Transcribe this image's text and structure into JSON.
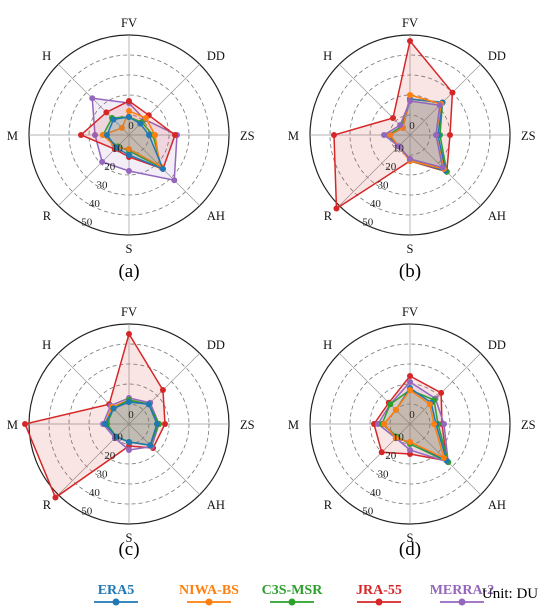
{
  "chart_data": [
    {
      "type": "radar",
      "panel_label": "(a)",
      "categories": [
        "FV",
        "DD",
        "ZS",
        "AH",
        "S",
        "R",
        "M",
        "H"
      ],
      "radial_ticks": [
        "0",
        "10",
        "20",
        "30",
        "40",
        "50"
      ],
      "rlim": [
        0,
        50
      ],
      "grid": true,
      "series": [
        {
          "name": "ERA5",
          "values": [
            9,
            8,
            10,
            24,
            10,
            9,
            11,
            11
          ]
        },
        {
          "name": "NIWA-BS",
          "values": [
            12,
            12,
            13,
            22,
            7,
            9,
            13,
            5
          ]
        },
        {
          "name": "C3S-MSR",
          "values": [
            9,
            9,
            12,
            23,
            8,
            8,
            13,
            12
          ]
        },
        {
          "name": "JRA-55",
          "values": [
            17,
            14,
            23,
            24,
            11,
            10,
            24,
            16
          ]
        },
        {
          "name": "MERRA-2",
          "values": [
            16,
            11,
            24,
            32,
            18,
            19,
            17,
            26
          ]
        }
      ]
    },
    {
      "type": "radar",
      "panel_label": "(b)",
      "categories": [
        "FV",
        "DD",
        "ZS",
        "AH",
        "S",
        "R",
        "M",
        "H"
      ],
      "radial_ticks": [
        "0",
        "10",
        "20",
        "30",
        "40",
        "50"
      ],
      "rlim": [
        0,
        50
      ],
      "grid": true,
      "series": [
        {
          "name": "ERA5",
          "values": [
            18,
            23,
            14,
            25,
            13,
            8,
            10,
            5
          ]
        },
        {
          "name": "NIWA-BS",
          "values": [
            20,
            22,
            13,
            24,
            13,
            8,
            10,
            5
          ]
        },
        {
          "name": "C3S-MSR",
          "values": [
            18,
            23,
            15,
            26,
            12,
            8,
            11,
            6
          ]
        },
        {
          "name": "JRA-55",
          "values": [
            47,
            30,
            20,
            26,
            13,
            52,
            38,
            12
          ]
        },
        {
          "name": "MERRA-2",
          "values": [
            17,
            21,
            13,
            23,
            12,
            8,
            13,
            7
          ]
        }
      ]
    },
    {
      "type": "radar",
      "panel_label": "(c)",
      "categories": [
        "FV",
        "DD",
        "ZS",
        "AH",
        "S",
        "R",
        "M",
        "H"
      ],
      "radial_ticks": [
        "0",
        "10",
        "20",
        "30",
        "40",
        "50"
      ],
      "rlim": [
        0,
        50
      ],
      "grid": true,
      "series": [
        {
          "name": "ERA5",
          "values": [
            11,
            14,
            14,
            15,
            9,
            9,
            12,
            11
          ]
        },
        {
          "name": "NIWA-BS",
          "values": [
            12,
            14,
            14,
            15,
            9,
            9,
            12,
            12
          ]
        },
        {
          "name": "C3S-MSR",
          "values": [
            12,
            14,
            15,
            15,
            9,
            9,
            11,
            11
          ]
        },
        {
          "name": "JRA-55",
          "values": [
            45,
            24,
            18,
            17,
            11,
            52,
            52,
            14
          ]
        },
        {
          "name": "MERRA-2",
          "values": [
            13,
            15,
            15,
            16,
            13,
            10,
            13,
            13
          ]
        }
      ]
    },
    {
      "type": "radar",
      "panel_label": "(d)",
      "categories": [
        "FV",
        "DD",
        "ZS",
        "AH",
        "S",
        "R",
        "M",
        "H"
      ],
      "radial_ticks": [
        "0",
        "10",
        "20",
        "30",
        "40",
        "50"
      ],
      "rlim": [
        0,
        50
      ],
      "grid": true,
      "series": [
        {
          "name": "ERA5",
          "values": [
            18,
            15,
            13,
            26,
            9,
            10,
            13,
            10
          ]
        },
        {
          "name": "NIWA-BS",
          "values": [
            17,
            14,
            12,
            24,
            9,
            10,
            13,
            10
          ]
        },
        {
          "name": "C3S-MSR",
          "values": [
            17,
            17,
            14,
            27,
            10,
            9,
            14,
            14
          ]
        },
        {
          "name": "JRA-55",
          "values": [
            24,
            22,
            16,
            26,
            15,
            20,
            18,
            15
          ]
        },
        {
          "name": "MERRA-2",
          "values": [
            21,
            18,
            17,
            27,
            13,
            10,
            16,
            14
          ]
        }
      ]
    }
  ],
  "colors": {
    "ERA5": "#1f77b4",
    "NIWA-BS": "#ff7f0e",
    "C3S-MSR": "#2ca02c",
    "JRA-55": "#d62728",
    "MERRA-2": "#9467bd"
  },
  "legend": [
    "ERA5",
    "NIWA-BS",
    "C3S-MSR",
    "JRA-55",
    "MERRA-2"
  ],
  "unit_label": "Unit: DU"
}
